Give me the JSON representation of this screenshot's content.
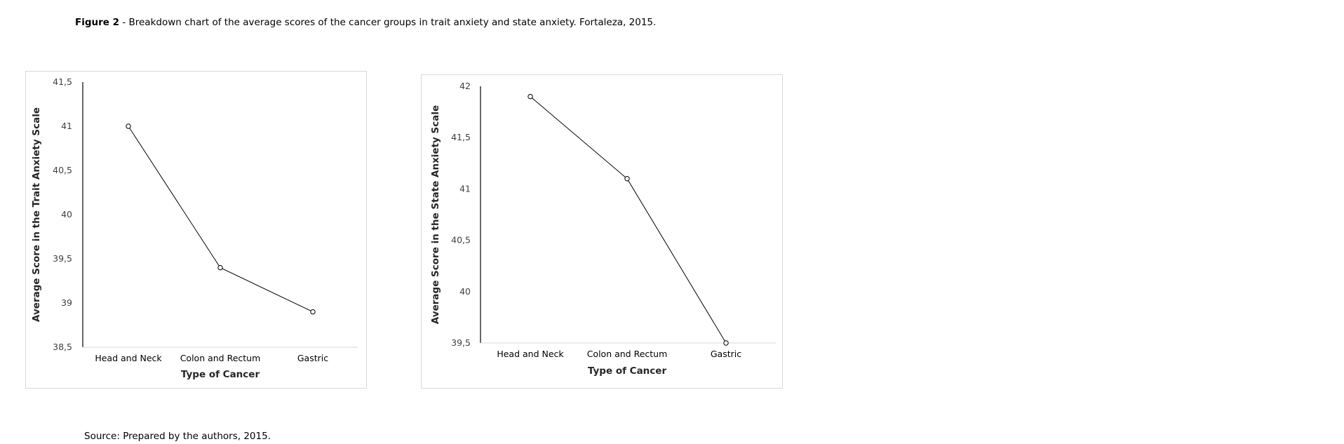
{
  "caption": {
    "figure_label": "Figure 2",
    "text": " - Breakdown chart of the average scores of the cancer groups in trait anxiety and state anxiety. Fortaleza, 2015."
  },
  "source": "Source: Prepared by the authors, 2015.",
  "chart_data": [
    {
      "type": "line",
      "categories": [
        "Head and Neck",
        "Colon and Rectum",
        "Gastric"
      ],
      "values": [
        41.0,
        39.4,
        38.9
      ],
      "ylim": [
        38.5,
        41.5
      ],
      "yticks": [
        "38,5",
        "39",
        "39,5",
        "40",
        "40,5",
        "41",
        "41,5"
      ],
      "xlabel": "Type of Cancer",
      "ylabel": "Average Score in the Trait Anxiety Scale",
      "grid": false,
      "marker": "open-circle",
      "line_color": "#000000"
    },
    {
      "type": "line",
      "categories": [
        "Head and Neck",
        "Colon and Rectum",
        "Gastric"
      ],
      "values": [
        41.9,
        41.1,
        39.5
      ],
      "ylim": [
        39.5,
        42
      ],
      "yticks": [
        "39,5",
        "40",
        "40,5",
        "41",
        "41,5",
        "42"
      ],
      "xlabel": "Type of Cancer",
      "ylabel": "Average Score in the State Anxiety Scale",
      "grid": false,
      "marker": "open-circle",
      "line_color": "#000000"
    }
  ]
}
